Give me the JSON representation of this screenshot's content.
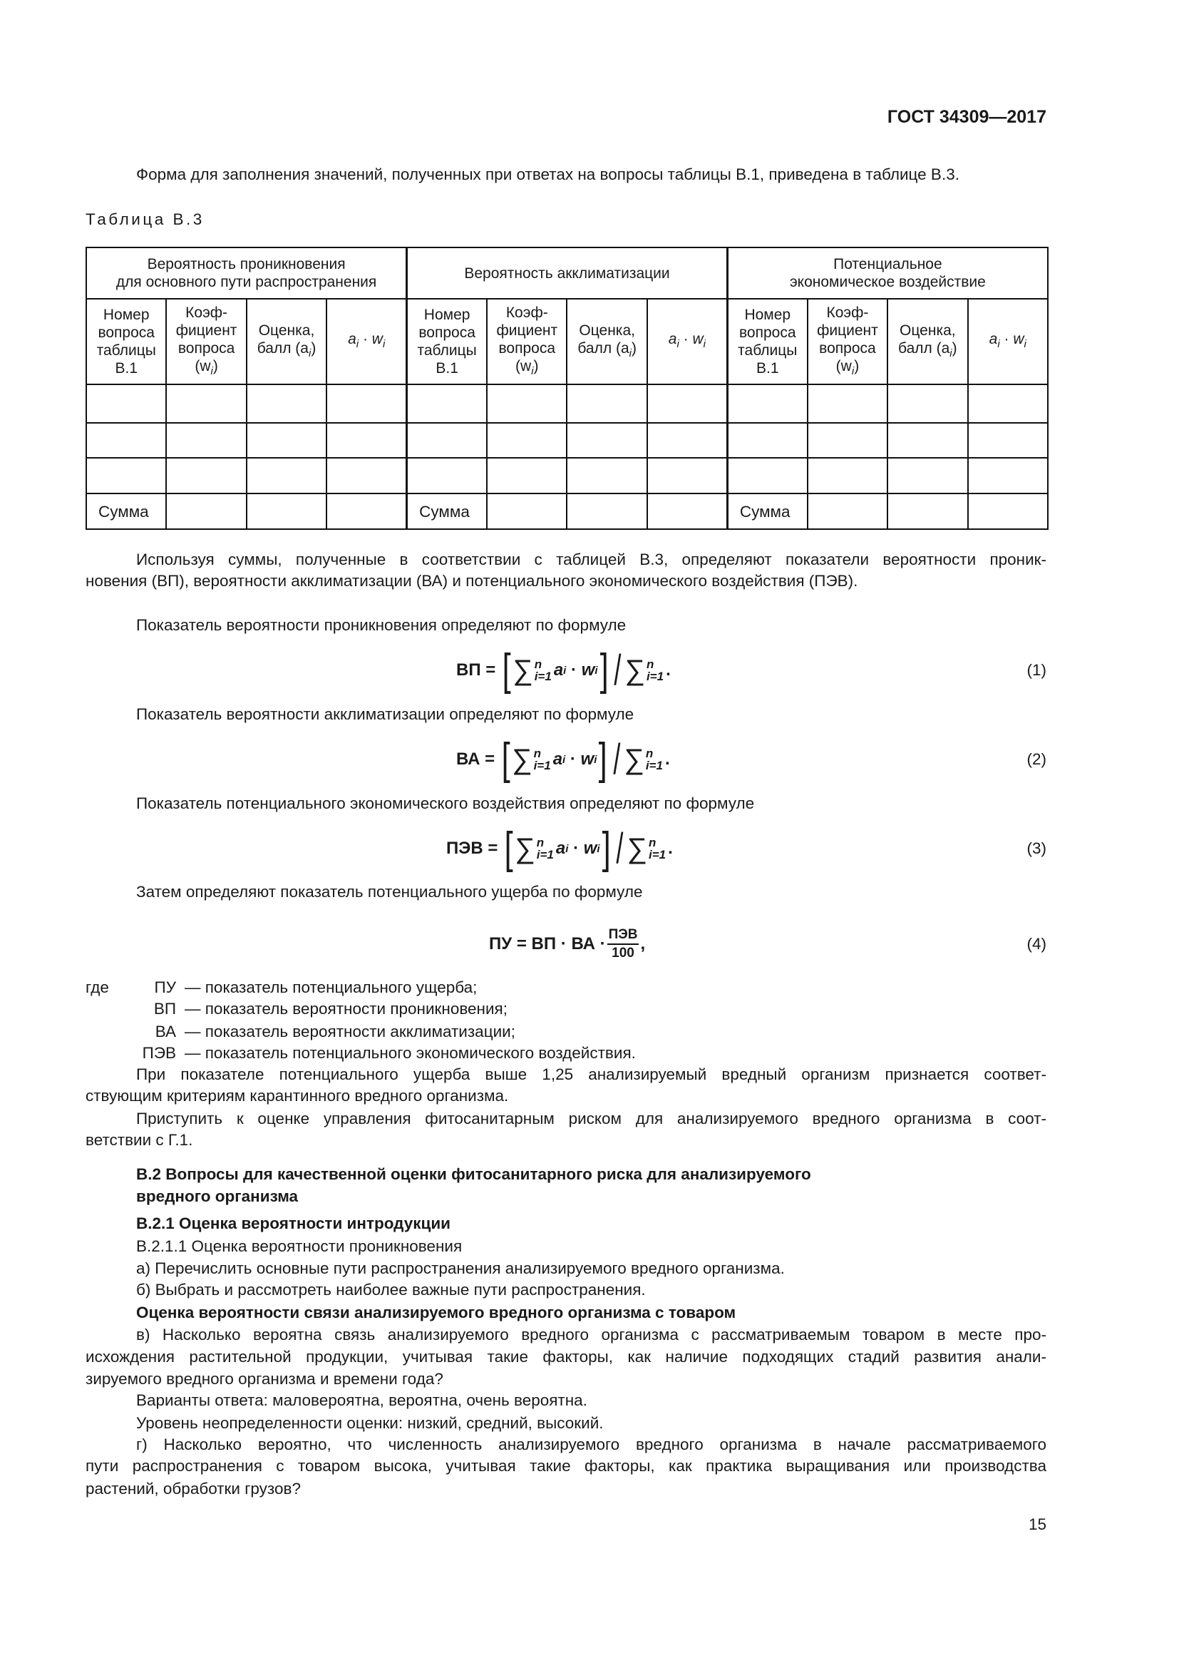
{
  "header": {
    "doc_id": "ГОСТ 34309—2017"
  },
  "intro": "Форма для заполнения значений, полученных при ответах на вопросы таблицы В.1, приведена в таблице В.3.",
  "table": {
    "caption": "Таблица В.3",
    "groups": [
      {
        "line1": "Вероятность проникновения",
        "line2": "для основного пути распространения"
      },
      {
        "line1": "Вероятность акклиматизации",
        "line2": ""
      },
      {
        "line1": "Потенциальное",
        "line2": "экономическое воздействие"
      }
    ],
    "columns": {
      "number": [
        "Номер",
        "вопроса",
        "таблицы",
        "В.1"
      ],
      "coef": [
        "Коэф-",
        "фициент",
        "вопроса",
        "(w",
        "i",
        ")"
      ],
      "score": [
        "Оценка,",
        "балл (a",
        "i",
        ")"
      ],
      "product": [
        "a",
        "i",
        " · ",
        "w",
        "i"
      ]
    },
    "sum_label": "Сумма"
  },
  "para_sums": [
    "Используя суммы, полученные в соответствии с таблицей В.3, определяют показатели вероятности проник-",
    "новения (ВП), вероятности акклиматизации (ВА) и потенциального экономического воздействия (ПЭВ)."
  ],
  "formula_parts": {
    "eq": "=",
    "lb": "[",
    "rb": "]",
    "sigma": "∑",
    "n": "n",
    "lower": "i=1",
    "a": "a",
    "w": "w",
    "i": "i",
    "dot": "·",
    "slash": "/",
    "period": "."
  },
  "formulas": [
    {
      "intro": "Показатель вероятности проникновения определяют по формуле",
      "lhs": "ВП",
      "number": "(1)"
    },
    {
      "intro": "Показатель вероятности акклиматизации определяют по формуле",
      "lhs": "ВА",
      "number": "(2)"
    },
    {
      "intro": "Показатель потенциального экономического воздействия определяют по формуле",
      "lhs": "ПЭВ",
      "number": "(3)"
    }
  ],
  "formula4": {
    "intro": "Затем определяют показатель потенциального ущерба по формуле",
    "text": "ПУ = ВП · ВА ·",
    "num": "ПЭВ",
    "den": "100",
    "comma": ",",
    "number": "(4)"
  },
  "where": {
    "word": "где",
    "items": [
      {
        "sym": "ПУ",
        "desc": "— показатель потенциального ущерба;"
      },
      {
        "sym": "ВП",
        "desc": "— показатель вероятности проникновения;"
      },
      {
        "sym": "ВА",
        "desc": "— показатель вероятности акклиматизации;"
      },
      {
        "sym": "ПЭВ",
        "desc": "— показатель потенциального экономического воздействия."
      }
    ]
  },
  "para_threshold": [
    "При показателе потенциального ущерба выше 1,25 анализируемый вредный организм признается соответ-",
    "ствующим критериям карантинного вредного организма."
  ],
  "para_proceed": [
    "Приступить к оценке управления фитосанитарным риском для анализируемого вредного организма в соот-",
    "ветствии с Г.1."
  ],
  "section_b2": [
    "В.2 Вопросы для качественной оценки фитосанитарного риска для анализируемого",
    "вредного организма"
  ],
  "section_b21": "В.2.1 Оценка вероятности интродукции",
  "b211": "В.2.1.1 Оценка вероятности проникновения",
  "item_a": "а) Перечислить основные пути распространения анализируемого вредного организма.",
  "item_b": "б) Выбрать и рассмотреть наиболее важные пути распространения.",
  "subhead": "Оценка вероятности связи анализируемого вредного организма с товаром",
  "item_v": [
    "в) Насколько вероятна связь анализируемого вредного организма с рассматриваемым товаром в месте про-",
    "исхождения растительной продукции, учитывая такие факторы, как наличие подходящих стадий развития анали-",
    "зируемого вредного организма и времени года?"
  ],
  "answers": "Варианты ответа: маловероятна, вероятна, очень вероятна.",
  "uncertainty": "Уровень неопределенности оценки: низкий, средний, высокий.",
  "item_g": [
    "г) Насколько вероятно, что численность анализируемого вредного организма в начале рассматриваемого",
    "пути распространения с товаром высока, учитывая такие факторы, как практика выращивания или производства",
    "растений, обработки грузов?"
  ],
  "page_number": "15"
}
